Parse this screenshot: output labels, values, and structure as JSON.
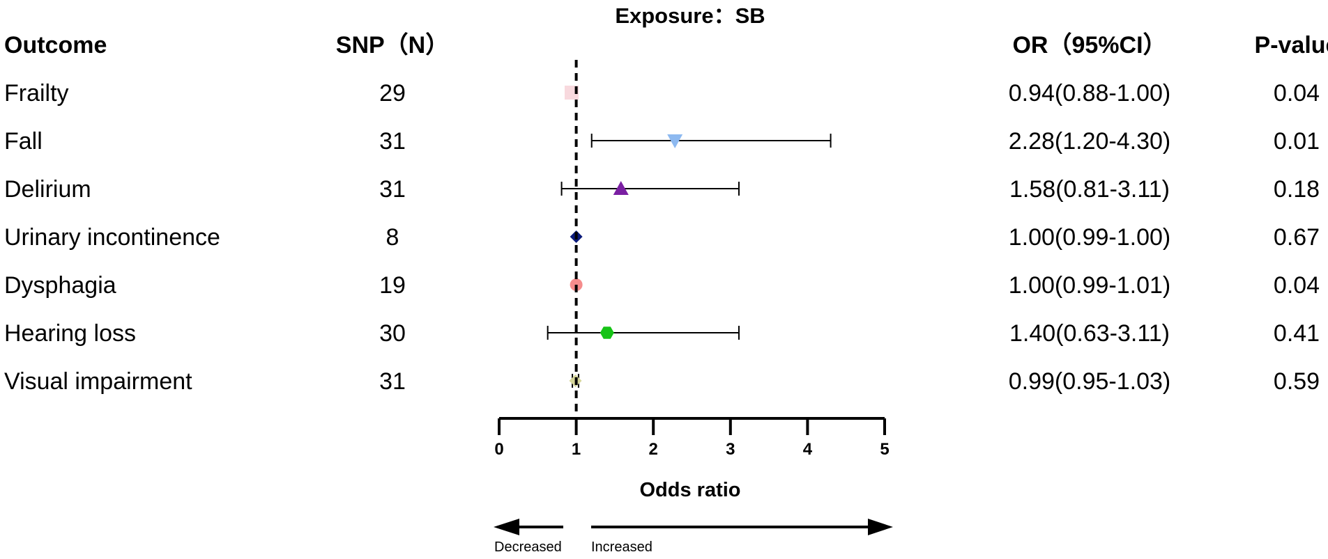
{
  "chart_data": {
    "type": "forest",
    "title": "Exposure：SB",
    "xlabel": "Odds ratio",
    "xlim": [
      0,
      5
    ],
    "reference_line": 1,
    "x_ticks": [
      0,
      1,
      2,
      3,
      4,
      5
    ],
    "x_tick_labels": [
      "0",
      "1",
      "2",
      "3",
      "4",
      "5"
    ],
    "grid": false,
    "columns": {
      "outcome": "Outcome",
      "snp": "SNP（N）",
      "or_ci": "OR（95%CI）",
      "p": "P-value"
    },
    "direction_labels": {
      "left": "Decreased",
      "right": "Increased"
    },
    "rows": [
      {
        "outcome": "Frailty",
        "snp": "29",
        "or": 0.94,
        "lo": 0.88,
        "hi": 1.0,
        "or_ci": "0.94(0.88-1.00)",
        "p": "0.04",
        "marker": "square",
        "color": "#F8D9DE"
      },
      {
        "outcome": "Fall",
        "snp": "31",
        "or": 2.28,
        "lo": 1.2,
        "hi": 4.3,
        "or_ci": "2.28(1.20-4.30)",
        "p": "0.01",
        "marker": "triangle-down",
        "color": "#8DB9F0"
      },
      {
        "outcome": "Delirium",
        "snp": "31",
        "or": 1.58,
        "lo": 0.81,
        "hi": 3.11,
        "or_ci": "1.58(0.81-3.11)",
        "p": "0.18",
        "marker": "triangle-up",
        "color": "#7A1FA2"
      },
      {
        "outcome": "Urinary incontinence",
        "snp": "8",
        "or": 1.0,
        "lo": 0.99,
        "hi": 1.0,
        "or_ci": "1.00(0.99-1.00)",
        "p": "0.67",
        "marker": "diamond",
        "color": "#0A1A7A"
      },
      {
        "outcome": "Dysphagia",
        "snp": "19",
        "or": 1.0,
        "lo": 0.99,
        "hi": 1.01,
        "or_ci": "1.00(0.99-1.01)",
        "p": "0.04",
        "marker": "circle",
        "color": "#F58C8C"
      },
      {
        "outcome": "Hearing loss",
        "snp": "30",
        "or": 1.4,
        "lo": 0.63,
        "hi": 3.11,
        "or_ci": "1.40(0.63-3.11)",
        "p": "0.41",
        "marker": "hexagon",
        "color": "#16C316"
      },
      {
        "outcome": "Visual impairment",
        "snp": "31",
        "or": 0.99,
        "lo": 0.95,
        "hi": 1.03,
        "or_ci": "0.99(0.95-1.03)",
        "p": "0.59",
        "marker": "diamond",
        "color": "#D6D69A"
      }
    ]
  }
}
